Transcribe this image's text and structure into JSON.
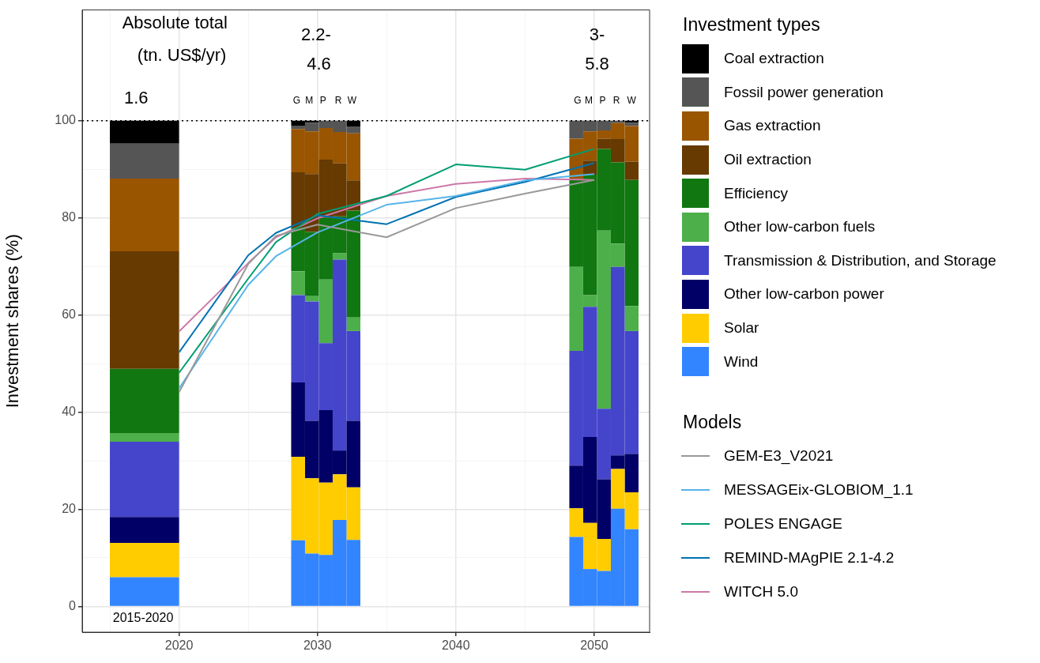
{
  "chart_data": {
    "type": "bar",
    "ylabel": "Investment shares (%)",
    "legend_title": "Investment types",
    "stacked": true,
    "grid": true,
    "legend": "right",
    "annotations": [
      "Models",
      "Absolute total",
      "(tn. US$/yr)",
      "1.6",
      "2.2-",
      "4.6",
      "3-",
      "5.8",
      "G",
      "M",
      "P",
      "R",
      "W",
      "G",
      "M",
      "P",
      "R",
      "W",
      "2015-2020"
    ],
    "x": [
      2017.5,
      2028.6,
      2029.6,
      2030.6,
      2031.6,
      2032.6,
      2048.7,
      2049.7,
      2050.7,
      2051.7,
      2052.7
    ],
    "xlim": [
      2013,
      2054
    ],
    "xticks": [
      {
        "value": 2015,
        "label": null
      },
      2020,
      {
        "value": 2025,
        "label": null
      },
      2030,
      {
        "value": 2035,
        "label": null
      },
      2040,
      {
        "value": 2045,
        "label": null
      },
      2050
    ],
    "ylim": [
      -5.3,
      122.8
    ],
    "yticks": [
      0,
      {
        "value": 10,
        "label": null
      },
      20,
      {
        "value": 30,
        "label": null
      },
      40,
      {
        "value": 50,
        "label": null
      },
      60,
      {
        "value": 70,
        "label": null
      },
      80,
      {
        "value": 90,
        "label": null
      },
      100
    ],
    "ref_lines": [
      {
        "axis": "y",
        "value": 100,
        "color": "#000000",
        "line_style": "dotted"
      }
    ],
    "series": [
      {
        "name": "Wind",
        "color": "#3385ff",
        "values": [
          6.0,
          13.6,
          10.9,
          10.6,
          17.8,
          13.7,
          14.3,
          7.7,
          7.3,
          20.1,
          15.9
        ]
      },
      {
        "name": "Solar",
        "color": "#ffcc00",
        "values": [
          7.1,
          17.2,
          15.5,
          14.9,
          9.4,
          10.8,
          5.9,
          9.5,
          6.6,
          8.2,
          7.6
        ]
      },
      {
        "name": "Other low-carbon power",
        "color": "#000066",
        "values": [
          5.3,
          15.3,
          11.8,
          14.9,
          4.9,
          13.7,
          8.8,
          17.7,
          12.3,
          2.8,
          7.9
        ]
      },
      {
        "name": "Transmission & Distribution, and Storage",
        "color": "#4545cc",
        "values": [
          15.5,
          18.0,
          24.6,
          13.8,
          39.3,
          18.5,
          23.6,
          26.8,
          14.5,
          38.8,
          25.3
        ]
      },
      {
        "name": "Other low-carbon fuels",
        "color": "#4daf4a",
        "values": [
          1.8,
          4.9,
          1.1,
          13.1,
          1.3,
          2.8,
          17.3,
          2.4,
          36.7,
          4.8,
          5.1
        ]
      },
      {
        "name": "Efficiency",
        "color": "#117711",
        "values": [
          13.2,
          9.0,
          13.2,
          12.7,
          7.6,
          22.0,
          18.1,
          24.8,
          16.8,
          16.7,
          26.0
        ]
      },
      {
        "name": "Oil extraction",
        "color": "#663a00",
        "values": [
          24.2,
          11.4,
          11.9,
          12.0,
          10.9,
          6.2,
          0,
          2.9,
          2.1,
          4.8,
          3.8
        ]
      },
      {
        "name": "Gas extraction",
        "color": "#995500",
        "values": [
          15.0,
          8.9,
          8.8,
          6.5,
          6.5,
          9.7,
          8.3,
          6.0,
          1.7,
          3.3,
          7.3
        ]
      },
      {
        "name": "Fossil power generation",
        "color": "#555555",
        "values": [
          7.2,
          0.7,
          1.8,
          1.5,
          2.3,
          1.4,
          3.7,
          2.2,
          2.0,
          0.5,
          0.7
        ]
      },
      {
        "name": "Coal extraction",
        "color": "#000000",
        "values": [
          4.7,
          1.0,
          0.4,
          0,
          0,
          1.2,
          0,
          0,
          0,
          0,
          0.4
        ]
      },
      {
        "name": "GEM-E3_V2021",
        "type": "line",
        "color": "#999999",
        "x": [
          2020,
          2025,
          2027,
          2030,
          2035,
          2040,
          2045,
          2050
        ],
        "values": [
          44.1,
          70.5,
          76.3,
          78.6,
          76.0,
          82.0,
          85.0,
          87.8
        ]
      },
      {
        "name": "MESSAGEix-GLOBIOM_1.1",
        "type": "line",
        "color": "#56b4e9",
        "x": [
          2020,
          2025,
          2027,
          2030,
          2035,
          2040,
          2045,
          2050
        ],
        "values": [
          44.9,
          66.2,
          72.1,
          77.0,
          82.7,
          84.5,
          87.7,
          89.0
        ]
      },
      {
        "name": "POLES ENGAGE",
        "type": "line",
        "color": "#009e73",
        "x": [
          2020,
          2025,
          2027,
          2030,
          2035,
          2040,
          2045,
          2050
        ],
        "values": [
          48.1,
          67.5,
          75.0,
          80.8,
          84.5,
          91.0,
          89.9,
          94.2
        ]
      },
      {
        "name": "REMIND-MAgPIE 2.1-4.2",
        "type": "line",
        "color": "#0072b2",
        "x": [
          2020,
          2025,
          2027,
          2030,
          2035,
          2040,
          2045,
          2050
        ],
        "values": [
          52.3,
          72.3,
          76.9,
          80.5,
          78.7,
          84.3,
          87.4,
          91.3
        ]
      },
      {
        "name": "WITCH 5.0",
        "type": "line",
        "color": "#cc79a7",
        "x": [
          2020,
          2025,
          2027,
          2030,
          2035,
          2040,
          2045,
          2050
        ],
        "values": [
          56.6,
          70.7,
          76.0,
          79.9,
          84.5,
          87.0,
          88.1,
          87.8
        ]
      }
    ]
  }
}
